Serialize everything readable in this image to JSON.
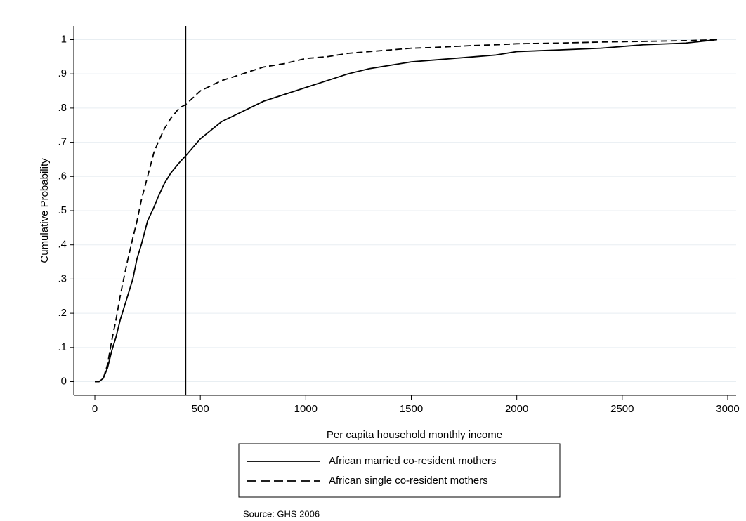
{
  "chart_data": {
    "type": "line",
    "x_label": "Per capita household monthly income",
    "y_label": "Cumulative Probability",
    "source": "Source: GHS 2006",
    "x": [
      0,
      20,
      40,
      60,
      80,
      100,
      120,
      150,
      180,
      200,
      220,
      250,
      280,
      300,
      330,
      360,
      400,
      430,
      500,
      600,
      700,
      800,
      900,
      1000,
      1100,
      1200,
      1300,
      1400,
      1500,
      1600,
      1700,
      1800,
      1900,
      2000,
      2200,
      2400,
      2600,
      2800,
      2950
    ],
    "series": [
      {
        "name": "African married co-resident mothers",
        "color": "#000000",
        "style": "solid",
        "values": [
          0,
          0,
          0.01,
          0.04,
          0.09,
          0.13,
          0.18,
          0.24,
          0.3,
          0.36,
          0.4,
          0.47,
          0.51,
          0.54,
          0.58,
          0.61,
          0.64,
          0.66,
          0.71,
          0.76,
          0.79,
          0.82,
          0.84,
          0.86,
          0.88,
          0.9,
          0.915,
          0.925,
          0.935,
          0.94,
          0.945,
          0.95,
          0.955,
          0.965,
          0.97,
          0.975,
          0.985,
          0.99,
          1
        ]
      },
      {
        "name": "African single co-resident mothers",
        "color": "#000000",
        "style": "dashed",
        "values": [
          0,
          0,
          0.01,
          0.05,
          0.12,
          0.18,
          0.25,
          0.34,
          0.42,
          0.47,
          0.53,
          0.6,
          0.67,
          0.7,
          0.74,
          0.77,
          0.8,
          0.81,
          0.85,
          0.88,
          0.9,
          0.92,
          0.93,
          0.945,
          0.95,
          0.96,
          0.965,
          0.97,
          0.975,
          0.977,
          0.98,
          0.983,
          0.985,
          0.988,
          0.99,
          0.993,
          0.995,
          0.997,
          1
        ]
      }
    ],
    "vline": 430,
    "xlim": [
      -100,
      3040
    ],
    "xticks": [
      0,
      500,
      1000,
      1500,
      2000,
      2500,
      3000
    ],
    "ylim": [
      -0.04,
      1.04
    ],
    "yticks": [
      0,
      {
        "value": 0.1,
        "label": ".1"
      },
      {
        "value": 0.2,
        "label": ".2"
      },
      {
        "value": 0.3,
        "label": ".3"
      },
      {
        "value": 0.4,
        "label": ".4"
      },
      {
        "value": 0.5,
        "label": ".5"
      },
      {
        "value": 0.6,
        "label": ".6"
      },
      {
        "value": 0.7,
        "label": ".7"
      },
      {
        "value": 0.8,
        "label": ".8"
      },
      {
        "value": 0.9,
        "label": ".9"
      },
      1
    ],
    "grid": true,
    "grid_color": "#e8eef2",
    "legend": "bottom"
  }
}
